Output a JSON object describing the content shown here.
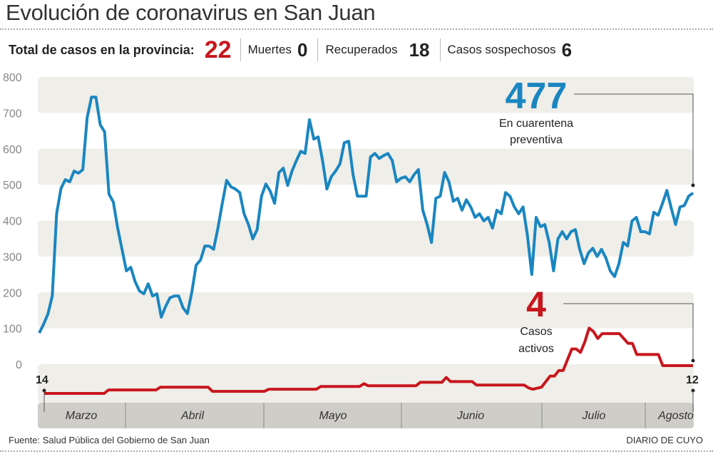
{
  "header": {
    "title": "Evolución de coronavirus en San Juan",
    "total_label": "Total de casos en la provincia:",
    "total_value": "22",
    "deaths_label": "Muertes",
    "deaths_value": "0",
    "recovered_label": "Recuperados",
    "recovered_value": "18",
    "suspected_label": "Casos sospechosos",
    "suspected_value": "6"
  },
  "footer": {
    "source": "Fuente: Salud Pública del Gobierno de San Juan",
    "brand": "DIARIO DE CUYO"
  },
  "colors": {
    "blue": "#1a86c0",
    "red": "#c8161d",
    "band": "#efeee9",
    "month_bar": "#cfcdc8"
  },
  "chart_data": {
    "type": "line",
    "title": "Evolución de coronavirus en San Juan",
    "ylim": [
      0,
      800
    ],
    "yticks": [
      "0",
      "100",
      "200",
      "300",
      "400",
      "500",
      "600",
      "700",
      "800"
    ],
    "grid": "alternating bands",
    "months": [
      "Marzo",
      "Abril",
      "Mayo",
      "Junio",
      "Julio",
      "Agosto"
    ],
    "start_day_label": "14",
    "end_day_label": "12",
    "date_range": [
      "14 de marzo",
      "12 de agosto"
    ],
    "series": [
      {
        "name": "En cuarentena preventiva",
        "label_value": "477",
        "label_line1": "En cuarentena",
        "label_line2": "preventiva",
        "color": "#1a86c0",
        "values": [
          87,
          111,
          140,
          190,
          420,
          490,
          514,
          508,
          538,
          532,
          542,
          687,
          744,
          744,
          667,
          647,
          474,
          452,
          379,
          320,
          260,
          270,
          230,
          204,
          196,
          224,
          190,
          196,
          131,
          161,
          185,
          190,
          190,
          157,
          141,
          200,
          276,
          290,
          329,
          329,
          320,
          379,
          448,
          512,
          494,
          488,
          478,
          419,
          389,
          349,
          375,
          468,
          502,
          482,
          448,
          534,
          546,
          498,
          538,
          567,
          593,
          587,
          681,
          627,
          633,
          567,
          488,
          522,
          538,
          558,
          617,
          621,
          528,
          468,
          468,
          468,
          577,
          587,
          573,
          581,
          587,
          567,
          508,
          518,
          522,
          508,
          528,
          542,
          429,
          389,
          339,
          462,
          468,
          534,
          508,
          454,
          462,
          429,
          458,
          438,
          409,
          419,
          399,
          409,
          379,
          429,
          419,
          478,
          468,
          438,
          419,
          438,
          359,
          250,
          409,
          383,
          389,
          339,
          260,
          349,
          369,
          349,
          369,
          375,
          320,
          280,
          310,
          323,
          300,
          320,
          296,
          260,
          244,
          280,
          339,
          329,
          399,
          409,
          369,
          369,
          363,
          423,
          415,
          448,
          484,
          435,
          389,
          438,
          442,
          468,
          477
        ]
      },
      {
        "name": "Casos activos",
        "label_value": "4",
        "label_line1": "Casos",
        "label_line2": "activos",
        "color": "#c8161d",
        "points": [
          [
            "03-14",
            0
          ],
          [
            "03-29",
            0
          ],
          [
            "03-30",
            0.5
          ],
          [
            "04-10",
            0.5
          ],
          [
            "04-11",
            0.9
          ],
          [
            "04-22",
            0.9
          ],
          [
            "04-23",
            0.3
          ],
          [
            "05-05",
            0.3
          ],
          [
            "05-06",
            0.6
          ],
          [
            "05-17",
            0.6
          ],
          [
            "05-18",
            1
          ],
          [
            "05-27",
            1
          ],
          [
            "05-28",
            1.4
          ],
          [
            "05-29",
            1.1
          ],
          [
            "06-09",
            1.1
          ],
          [
            "06-10",
            1.6
          ],
          [
            "06-15",
            1.6
          ],
          [
            "06-16",
            2.3
          ],
          [
            "06-17",
            1.7
          ],
          [
            "06-22",
            1.7
          ],
          [
            "06-23",
            1.2
          ],
          [
            "07-04",
            1.2
          ],
          [
            "07-05",
            0.8
          ],
          [
            "07-06",
            0.6
          ],
          [
            "07-08",
            0.9
          ],
          [
            "07-10",
            2.5
          ],
          [
            "07-11",
            2.5
          ],
          [
            "07-12",
            3.3
          ],
          [
            "07-13",
            3.3
          ],
          [
            "07-15",
            6.4
          ],
          [
            "07-16",
            6.4
          ],
          [
            "07-17",
            5.9
          ],
          [
            "07-18",
            7.4
          ],
          [
            "07-19",
            9.4
          ],
          [
            "07-20",
            8.9
          ],
          [
            "07-21",
            7.9
          ],
          [
            "07-22",
            8.6
          ],
          [
            "07-26",
            8.6
          ],
          [
            "07-28",
            7.2
          ],
          [
            "07-29",
            7.2
          ],
          [
            "07-30",
            5.6
          ],
          [
            "08-04",
            5.6
          ],
          [
            "08-05",
            4
          ],
          [
            "08-12",
            4
          ]
        ]
      }
    ]
  }
}
